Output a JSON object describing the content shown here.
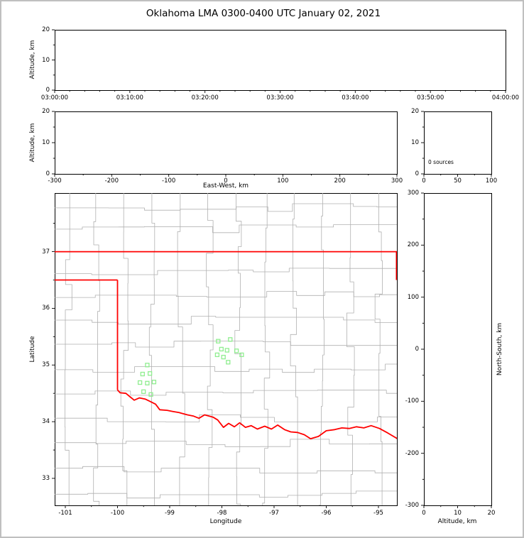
{
  "title": "Oklahoma LMA 0300-0400 UTC January 02, 2021",
  "panels": {
    "time_height": {
      "ylabel": "Altitude, km",
      "yticks": [
        "0",
        "10",
        "20"
      ],
      "xticks": [
        "03:00:00",
        "03:10:00",
        "03:20:00",
        "03:30:00",
        "03:40:00",
        "03:50:00",
        "04:00:00"
      ]
    },
    "ew_height": {
      "ylabel": "Altitude, km",
      "xlabel": "East-West, km",
      "yticks": [
        "0",
        "10",
        "20"
      ],
      "xticks": [
        "-300",
        "-200",
        "-100",
        "0",
        "100",
        "200",
        "300"
      ]
    },
    "alt_hist": {
      "annotation": "0 sources",
      "yticks": [
        "0",
        "10",
        "20"
      ],
      "xticks": [
        "0",
        "50",
        "100"
      ]
    },
    "map": {
      "ylabel": "Latitude",
      "xlabel": "Longitude",
      "yticks": [
        "33",
        "34",
        "35",
        "36",
        "37"
      ],
      "xticks": [
        "-101",
        "-100",
        "-99",
        "-98",
        "-97",
        "-96",
        "-95"
      ]
    },
    "ns_height": {
      "ylabel_right": "North-South, km",
      "xlabel": "Altitude, km",
      "yticks": [
        "300",
        "200",
        "100",
        "0",
        "-100",
        "-200",
        "-300"
      ],
      "xticks": [
        "0",
        "10",
        "20"
      ]
    }
  },
  "chart_data": {
    "type": "scatter",
    "title": "Oklahoma LMA 0300-0400 UTC January 02, 2021",
    "network": "Oklahoma LMA",
    "date": "January 02, 2021",
    "time_window_utc": [
      "03:00:00",
      "04:00:00"
    ],
    "lightning_source_count": 0,
    "panels": [
      {
        "id": "time-altitude",
        "ylabel": "Altitude, km",
        "ylim_km": [
          0,
          20
        ],
        "x_range": [
          "03:00:00",
          "04:00:00"
        ],
        "x_tick_step": "00:10:00",
        "points": []
      },
      {
        "id": "eastwest-altitude",
        "xlabel": "East-West, km",
        "ylabel": "Altitude, km",
        "xlim_km": [
          -300,
          300
        ],
        "ylim_km": [
          0,
          20
        ],
        "points": []
      },
      {
        "id": "altitude-histogram",
        "xlim": [
          0,
          100
        ],
        "ylim_km": [
          0,
          20
        ],
        "annotation": "0 sources",
        "points": []
      },
      {
        "id": "plan-view-map",
        "xlabel": "Longitude",
        "ylabel": "Latitude",
        "xlim_deg": [
          -101.2,
          -94.65
        ],
        "ylim_deg": [
          32.52,
          38.03
        ],
        "points": []
      },
      {
        "id": "northsouth-altitude",
        "xlabel": "Altitude, km",
        "ylabel": "North-South, km",
        "xlim_km": [
          0,
          20
        ],
        "ylim_km": [
          -300,
          300
        ],
        "points": []
      }
    ],
    "stations_lonlat": [
      [
        -99.43,
        35.0
      ],
      [
        -99.52,
        34.84
      ],
      [
        -99.38,
        34.85
      ],
      [
        -99.57,
        34.69
      ],
      [
        -99.43,
        34.68
      ],
      [
        -99.3,
        34.7
      ],
      [
        -99.5,
        34.53
      ],
      [
        -99.36,
        34.48
      ],
      [
        -98.07,
        35.42
      ],
      [
        -97.84,
        35.45
      ],
      [
        -98.01,
        35.28
      ],
      [
        -97.9,
        35.26
      ],
      [
        -98.09,
        35.18
      ],
      [
        -97.97,
        35.14
      ],
      [
        -97.72,
        35.25
      ],
      [
        -97.62,
        35.18
      ],
      [
        -97.88,
        35.05
      ]
    ],
    "state_border_segments": [
      [
        [
          -101.21,
          37.0
        ],
        [
          -94.6,
          37.0
        ]
      ],
      [
        [
          -94.655,
          37.0
        ],
        [
          -94.655,
          36.5
        ]
      ],
      [
        [
          -101.21,
          36.5
        ],
        [
          -100.0,
          36.5
        ]
      ],
      [
        [
          -100.0,
          36.5
        ],
        [
          -100.0,
          34.56
        ]
      ],
      [
        [
          -100.0,
          34.56
        ],
        [
          -99.95,
          34.51
        ],
        [
          -99.84,
          34.5
        ],
        [
          -99.76,
          34.44
        ],
        [
          -99.68,
          34.38
        ],
        [
          -99.58,
          34.42
        ],
        [
          -99.47,
          34.4
        ],
        [
          -99.38,
          34.36
        ],
        [
          -99.27,
          34.31
        ],
        [
          -99.19,
          34.21
        ],
        [
          -99.05,
          34.2
        ],
        [
          -98.94,
          34.18
        ],
        [
          -98.82,
          34.16
        ],
        [
          -98.66,
          34.12
        ],
        [
          -98.55,
          34.1
        ],
        [
          -98.44,
          34.06
        ],
        [
          -98.33,
          34.12
        ],
        [
          -98.17,
          34.08
        ],
        [
          -98.08,
          34.03
        ],
        [
          -97.97,
          33.9
        ],
        [
          -97.87,
          33.97
        ],
        [
          -97.76,
          33.91
        ],
        [
          -97.66,
          33.98
        ],
        [
          -97.55,
          33.9
        ],
        [
          -97.44,
          33.93
        ],
        [
          -97.32,
          33.87
        ],
        [
          -97.18,
          33.92
        ],
        [
          -97.05,
          33.87
        ],
        [
          -96.93,
          33.94
        ],
        [
          -96.8,
          33.86
        ],
        [
          -96.68,
          33.82
        ],
        [
          -96.55,
          33.81
        ],
        [
          -96.42,
          33.77
        ],
        [
          -96.3,
          33.7
        ],
        [
          -96.15,
          33.74
        ],
        [
          -96.0,
          33.84
        ],
        [
          -95.84,
          33.86
        ],
        [
          -95.7,
          33.89
        ],
        [
          -95.56,
          33.88
        ],
        [
          -95.42,
          33.91
        ],
        [
          -95.28,
          33.89
        ],
        [
          -95.14,
          33.93
        ],
        [
          -94.98,
          33.88
        ],
        [
          -94.82,
          33.8
        ],
        [
          -94.6,
          33.68
        ]
      ]
    ],
    "colors": {
      "state_border": "#ff0000",
      "county_lines": "#b0b0b0",
      "station_marker": "#90ee90",
      "axes": "#000000",
      "figure_border": "#bfbfbf",
      "background": "#ffffff"
    }
  }
}
